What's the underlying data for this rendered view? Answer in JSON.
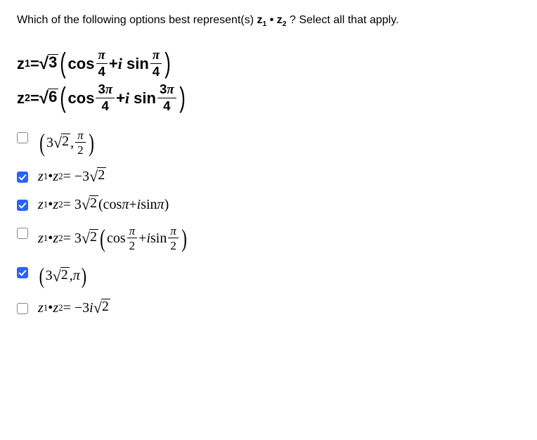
{
  "question": {
    "prefix": "Which of the following options best represent(s) ",
    "expr_z1": "z",
    "expr_sub1": "1",
    "dot": " • ",
    "expr_z2": "z",
    "expr_sub2": "2",
    "suffix": " ? Select all that apply."
  },
  "given": {
    "z1": {
      "lhs_var": "z",
      "lhs_sub": "1",
      "eq": " = ",
      "coef_rad": "3",
      "cos": "cos",
      "arg_num_pi": "π",
      "arg_den": "4",
      "plus": " + ",
      "i": "i",
      "sin": "sin"
    },
    "z2": {
      "lhs_var": "z",
      "lhs_sub": "2",
      "eq": " = ",
      "coef_rad": "6",
      "cos": "cos",
      "arg_num": "3",
      "arg_num_pi": "π",
      "arg_den": "4",
      "plus": " + ",
      "i": "i",
      "sin": "sin"
    }
  },
  "options": [
    {
      "checked": false,
      "lp": "(",
      "a": "3",
      "rad": "2",
      "comma": ",",
      "num_pi": "π",
      "den": "2",
      "rp": ")"
    },
    {
      "checked": true,
      "z": "z",
      "s1": "1",
      "dot": "•",
      "s2": "2",
      "eq": " = −3",
      "rad": "2"
    },
    {
      "checked": true,
      "z": "z",
      "s1": "1",
      "dot": "•",
      "s2": "2",
      "eq": " = 3",
      "rad": "2",
      "sp": " ",
      "lp": "(",
      "cos": "cos",
      "pi": "π",
      "plus": " + ",
      "i": "i",
      "sin": " sin ",
      "rp": ")"
    },
    {
      "checked": false,
      "z": "z",
      "s1": "1",
      "dot": "•",
      "s2": "2",
      "eq": " = 3",
      "rad": "2",
      "lp": "(",
      "cos": "cos",
      "num_pi": "π",
      "den": "2",
      "plus": " + ",
      "i": "i",
      "sin": " sin ",
      "rp": ")"
    },
    {
      "checked": true,
      "lp": "(",
      "a": "3",
      "rad": "2",
      "comma": ",",
      "pi": "π",
      "rp": ")"
    },
    {
      "checked": false,
      "z": "z",
      "s1": "1",
      "dot": "•",
      "s2": "2",
      "eq": " = −3",
      "i": "i",
      "rad": "2"
    }
  ],
  "colors": {
    "checkbox_checked": "#2962ff",
    "text": "#000000",
    "bg": "#ffffff"
  }
}
